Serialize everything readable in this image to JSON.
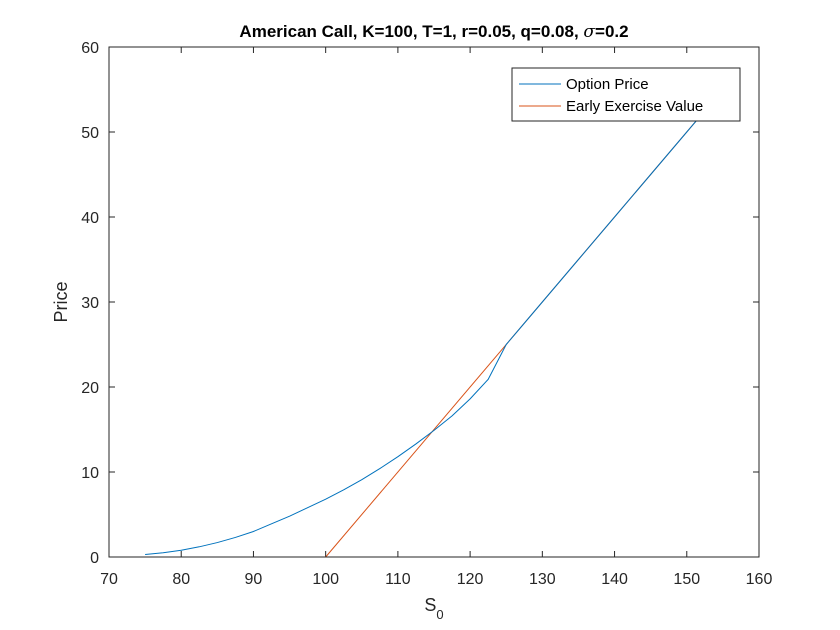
{
  "chart_data": {
    "type": "line",
    "title": "American  Call,  K=100, T=1, r=0.05, q=0.08, σ=0.2",
    "title_parts": {
      "prefix": "American  Call,  K=100, T=1, r=0.05, q=0.08, ",
      "symbol": "σ",
      "suffix": "=0.2"
    },
    "xlabel": "S",
    "xlabel_subscript": "0",
    "ylabel": "Price",
    "xlim": [
      70,
      160
    ],
    "ylim": [
      0,
      60
    ],
    "xticks": [
      70,
      80,
      90,
      100,
      110,
      120,
      130,
      140,
      150,
      160
    ],
    "yticks": [
      0,
      10,
      20,
      30,
      40,
      50,
      60
    ],
    "grid": false,
    "legend_placement": "top-right",
    "series": [
      {
        "name": "Option Price",
        "color": "#0072BD",
        "x": [
          75,
          77.5,
          80,
          82.5,
          85,
          87.5,
          90,
          92.5,
          95,
          97.5,
          100,
          102.5,
          105,
          107.5,
          110,
          112.5,
          115,
          117.5,
          120,
          122.5,
          125,
          127.5,
          130,
          135,
          140,
          145,
          150,
          152.5
        ],
        "y": [
          0.3,
          0.5,
          0.8,
          1.2,
          1.7,
          2.3,
          3.0,
          3.9,
          4.8,
          5.8,
          6.8,
          7.9,
          9.1,
          10.4,
          11.8,
          13.3,
          14.9,
          16.6,
          18.6,
          20.9,
          25,
          27.5,
          30,
          35,
          40,
          45,
          50,
          52.5
        ]
      },
      {
        "name": "Early Exercise Value",
        "color": "#D95319",
        "x": [
          75,
          100,
          152.5
        ],
        "y": [
          0,
          0,
          52.5
        ]
      }
    ]
  }
}
